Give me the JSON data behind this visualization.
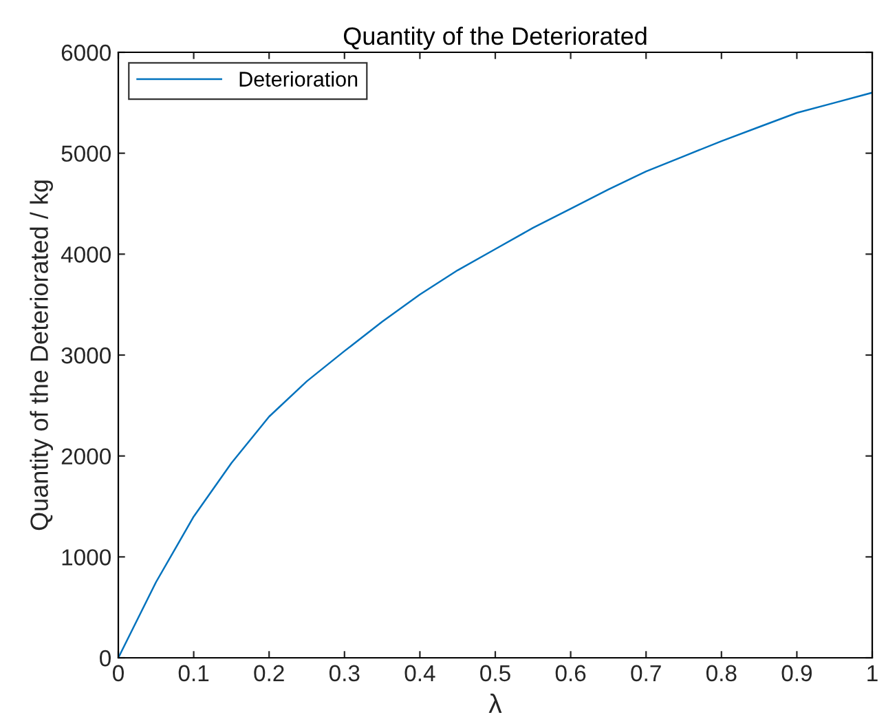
{
  "chart_data": {
    "type": "line",
    "title": "Quantity of the Deteriorated",
    "xlabel": "λ",
    "ylabel": "Quantity of the Deteriorated / kg",
    "series": [
      {
        "name": "Deterioration",
        "color": "#0072bd",
        "x": [
          0,
          0.02,
          0.05,
          0.1,
          0.15,
          0.2,
          0.25,
          0.3,
          0.35,
          0.4,
          0.45,
          0.5,
          0.55,
          0.6,
          0.65,
          0.7,
          0.75,
          0.8,
          0.85,
          0.9,
          0.95,
          1.0
        ],
        "values": [
          0,
          300,
          750,
          1400,
          1930,
          2390,
          2740,
          3040,
          3330,
          3600,
          3840,
          4050,
          4260,
          4450,
          4640,
          4820,
          4970,
          5120,
          5260,
          5400,
          5500,
          5600
        ]
      }
    ],
    "xlim": [
      0,
      1
    ],
    "ylim": [
      0,
      6000
    ],
    "xticks": [
      0,
      0.1,
      0.2,
      0.3,
      0.4,
      0.5,
      0.6,
      0.7,
      0.8,
      0.9,
      1
    ],
    "yticks": [
      0,
      1000,
      2000,
      3000,
      4000,
      5000,
      6000
    ],
    "legend": "top left",
    "grid": false,
    "line_style": "solid",
    "marker": "none"
  }
}
